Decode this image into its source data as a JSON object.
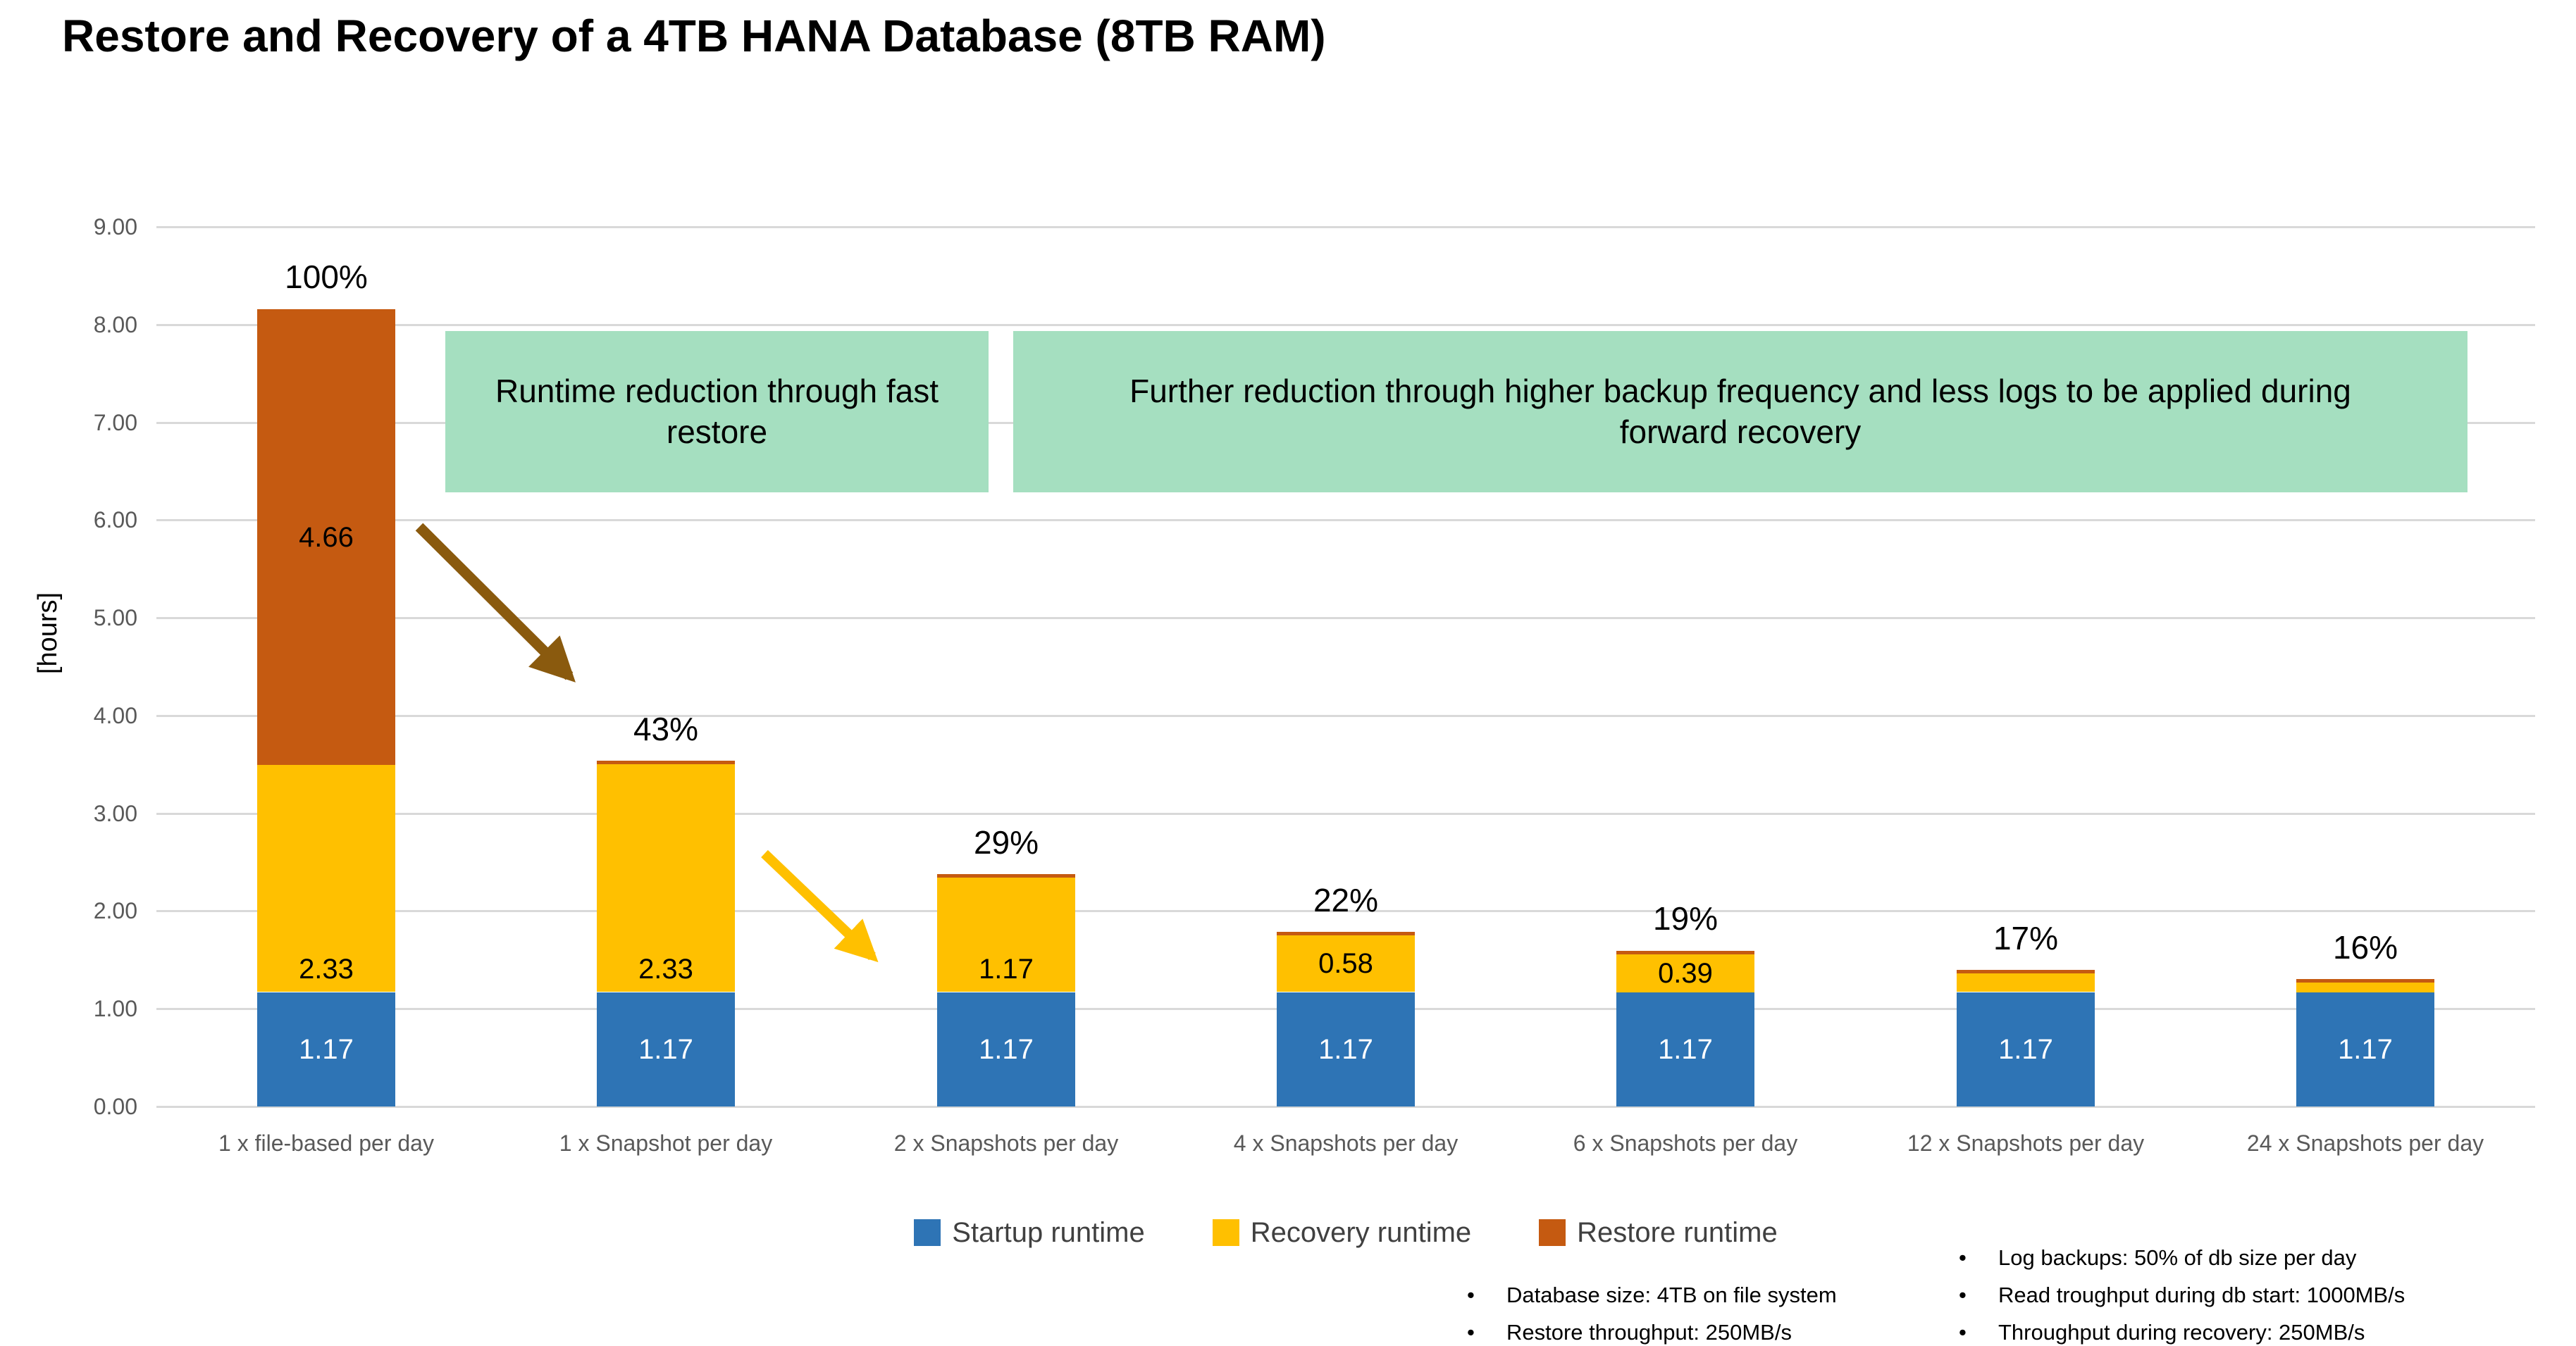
{
  "slide": {
    "title": "Restore and Recovery of a 4TB HANA Database (8TB RAM)"
  },
  "chart_data": {
    "type": "bar",
    "stacked": true,
    "title": "Restore and Recovery of a 4TB HANA Database (8TB RAM)",
    "xlabel": "",
    "ylabel": "[hours]",
    "ylim": [
      0,
      9
    ],
    "ytick_labels": [
      "0.00",
      "1.00",
      "2.00",
      "3.00",
      "4.00",
      "5.00",
      "6.00",
      "7.00",
      "8.00",
      "9.00"
    ],
    "grid": true,
    "legend_position": "bottom",
    "categories": [
      "1 x file-based per day",
      "1 x Snapshot per day",
      "2 x Snapshots per day",
      "4 x Snapshots per day",
      "6 x Snapshots per day",
      "12 x Snapshots per day",
      "24 x Snapshots per day"
    ],
    "series": [
      {
        "name": "Startup runtime",
        "color": "#2E74B5",
        "label_color": "#FFFFFF",
        "values": [
          1.17,
          1.17,
          1.17,
          1.17,
          1.17,
          1.17,
          1.17
        ],
        "labels": [
          "1.17",
          "1.17",
          "1.17",
          "1.17",
          "1.17",
          "",
          ""
        ],
        "label_in_blue_bars_6_7": [
          "1.17",
          "1.17"
        ]
      },
      {
        "name": "Recovery runtime",
        "color": "#FFC000",
        "label_color": "#000000",
        "values": [
          2.33,
          2.33,
          1.17,
          0.58,
          0.39,
          0.19,
          0.1
        ],
        "labels": [
          "2.33",
          "2.33",
          "1.17",
          "0.58",
          "0.39",
          "",
          ""
        ]
      },
      {
        "name": "Restore runtime",
        "color": "#C55A11",
        "label_color": "#000000",
        "values": [
          4.66,
          0.03,
          0.03,
          0.03,
          0.03,
          0.03,
          0.03
        ],
        "labels": [
          "4.66",
          "",
          "",
          "",
          "",
          "",
          ""
        ]
      }
    ],
    "total_percent_labels": [
      "100%",
      "43%",
      "29%",
      "22%",
      "19%",
      "17%",
      "16%"
    ]
  },
  "annotations": {
    "box1": {
      "text": "Runtime reduction through fast restore",
      "fill": "#A5DFC0"
    },
    "box2": {
      "text": "Further reduction through higher backup frequency and less logs to be applied during forward recovery",
      "fill": "#A5DFC0"
    },
    "arrow1": {
      "color": "#8A5A0E"
    },
    "arrow2": {
      "color": "#FFC000"
    }
  },
  "notes": {
    "bullet": "•",
    "left": [
      "Database size: 4TB on file system",
      "Restore throughput: 250MB/s"
    ],
    "right": [
      "Log backups: 50% of db size per day",
      "Read troughput during db start: 1000MB/s",
      "Throughput during recovery: 250MB/s"
    ]
  }
}
